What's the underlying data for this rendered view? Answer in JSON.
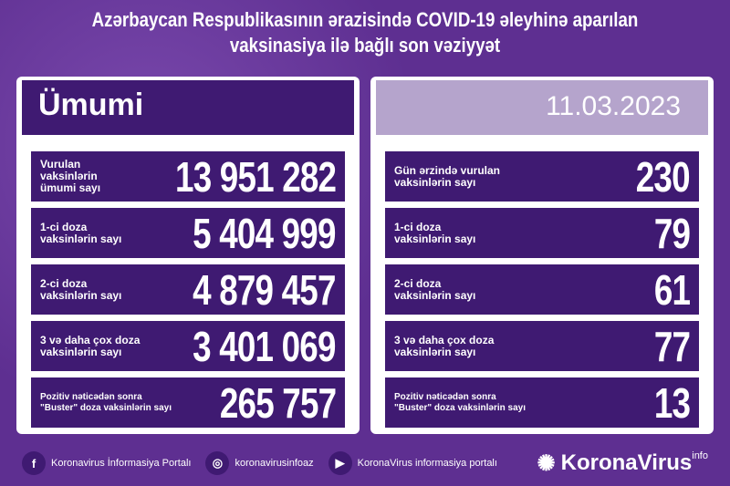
{
  "title": "Azərbaycan Respublikasının ərazisində COVID-19 əleyhinə aparılan vaksinasiya ilə bağlı son vəziyyət",
  "left": {
    "header": "Ümumi",
    "rows": [
      {
        "label": "Vurulan vaksinlərin\nümumi sayı",
        "value": "13 951 282"
      },
      {
        "label": "1-ci doza\nvaksinlərin sayı",
        "value": "5 404 999"
      },
      {
        "label": "2-ci doza\nvaksinlərin sayı",
        "value": "4 879 457"
      },
      {
        "label": "3 və daha çox doza\nvaksinlərin sayı",
        "value": "3 401 069"
      },
      {
        "label": "Pozitiv nəticədən sonra\n\"Buster\" doza vaksinlərin sayı",
        "value": "265 757"
      }
    ]
  },
  "right": {
    "date": "11.03.2023",
    "rows": [
      {
        "label": "Gün ərzində vurulan\nvaksinlərin sayı",
        "value": "230"
      },
      {
        "label": "1-ci doza\nvaksinlərin sayı",
        "value": "79"
      },
      {
        "label": "2-ci doza\nvaksinlərin sayı",
        "value": "61"
      },
      {
        "label": "3 və daha çox doza\nvaksinlərin sayı",
        "value": "77"
      },
      {
        "label": "Pozitiv nəticədən sonra\n\"Buster\" doza vaksinlərin sayı",
        "value": "13"
      }
    ]
  },
  "footer": {
    "facebook": "Koronavirus İnformasiya Portalı",
    "instagram": "koronavirusinfoaz",
    "youtube": "KoronaVirus informasiya portalı",
    "logo": "KoronaVirus",
    "logo_sup": "info"
  },
  "colors": {
    "background": "#5e2f91",
    "row": "#3f1a72",
    "date_bar": "#b5a4cc"
  }
}
